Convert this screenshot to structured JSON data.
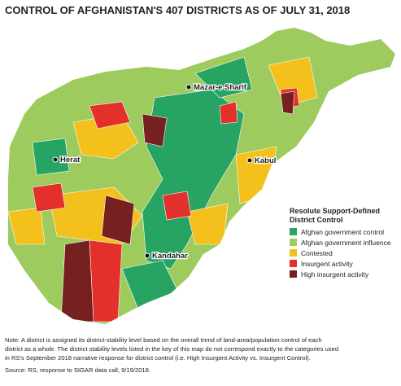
{
  "title": "CONTROL OF AFGHANISTAN'S 407 DISTRICTS AS OF JULY 31, 2018",
  "cities": [
    "Mazar-e Sharif",
    "Herat",
    "Kabul",
    "Kandahar"
  ],
  "legend": {
    "title": [
      "Resolute Support-Defined",
      "District Control"
    ],
    "items": [
      {
        "label": "Afghan government control",
        "color": "#27a463"
      },
      {
        "label": "Afghan government influence",
        "color": "#9dcb5e"
      },
      {
        "label": "Contested",
        "color": "#f4c01b"
      },
      {
        "label": "Insurgent activity",
        "color": "#e3302a"
      },
      {
        "label": "High insurgent activity",
        "color": "#762020"
      }
    ]
  },
  "note": [
    "Note: A district is assigned its district-stability level based on the overall trend of land-area/population control of each",
    "district as a whole. The district stability levels listed in the key of this map do not correspond exactly to the categories used",
    "in RS's September 2018 narrative response for district control (i.e. High Insurgent Activity vs. Insurgent Control)."
  ],
  "source": "Source: RS, response to SIGAR data call, 9/19/2018."
}
